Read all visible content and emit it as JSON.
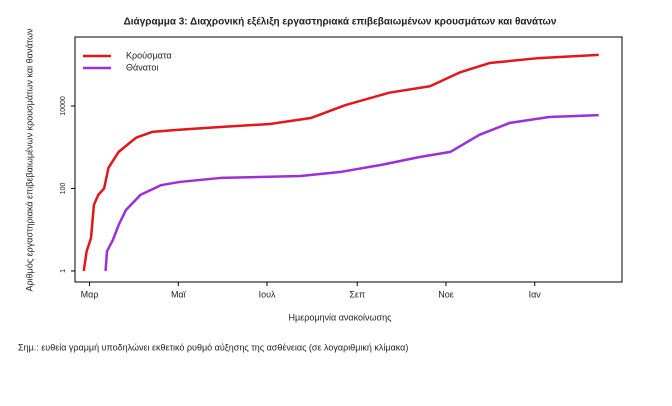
{
  "chart_data": {
    "type": "line",
    "title": "Διάγραμμα 3: Διαχρονική εξέλιξη εργαστηριακά επιβεβαιωμένων κρουσμάτων και θανάτων",
    "xlabel": "Ημερομηνία ανακοίνωσης",
    "ylabel": "Αριθμός εργαστηριακά επιβεβαιωμένων κρουσμάτων και θανάτων",
    "note": "Σημ.: ευθεία γραμμή υποδηλώνει εκθετικό ρυθμό αύξησης της ασθένειας (σε λογαριθμική κλίμακα)",
    "log_y": true,
    "legend": "upper left",
    "xlim": [
      -10,
      366
    ],
    "ylim": [
      0.54,
      470000
    ],
    "xticks": [
      {
        "value": 0,
        "label": "Μαρ"
      },
      {
        "value": 61,
        "label": "Μαϊ"
      },
      {
        "value": 122,
        "label": "Ιουλ"
      },
      {
        "value": 184,
        "label": "Σεπ"
      },
      {
        "value": 245,
        "label": "Νοε"
      },
      {
        "value": 306,
        "label": "Ιαν"
      }
    ],
    "yticks": [
      1,
      100,
      10000
    ],
    "series": [
      {
        "name": "Κρούσματα",
        "color": "#e3161b",
        "x": [
          -4,
          -2,
          1,
          3,
          6,
          10,
          13,
          20,
          32,
          43,
          59,
          90,
          124,
          152,
          176,
          206,
          234,
          255,
          275,
          309,
          350
        ],
        "values": [
          1,
          3,
          6.3,
          40,
          70,
          100,
          316,
          770,
          1700,
          2350,
          2620,
          3100,
          3650,
          5100,
          10500,
          21000,
          30000,
          66000,
          110000,
          145000,
          173000
        ]
      },
      {
        "name": "Θάνατοι",
        "color": "#9b30d9",
        "x": [
          11,
          12,
          16,
          20,
          25,
          35,
          49,
          62,
          90,
          145,
          172,
          200,
          227,
          248,
          268,
          289,
          316,
          350
        ],
        "values": [
          1,
          3,
          5.6,
          13,
          30,
          70,
          120,
          144,
          180,
          200,
          250,
          370,
          580,
          770,
          2000,
          3900,
          5400,
          6000
        ]
      }
    ]
  }
}
